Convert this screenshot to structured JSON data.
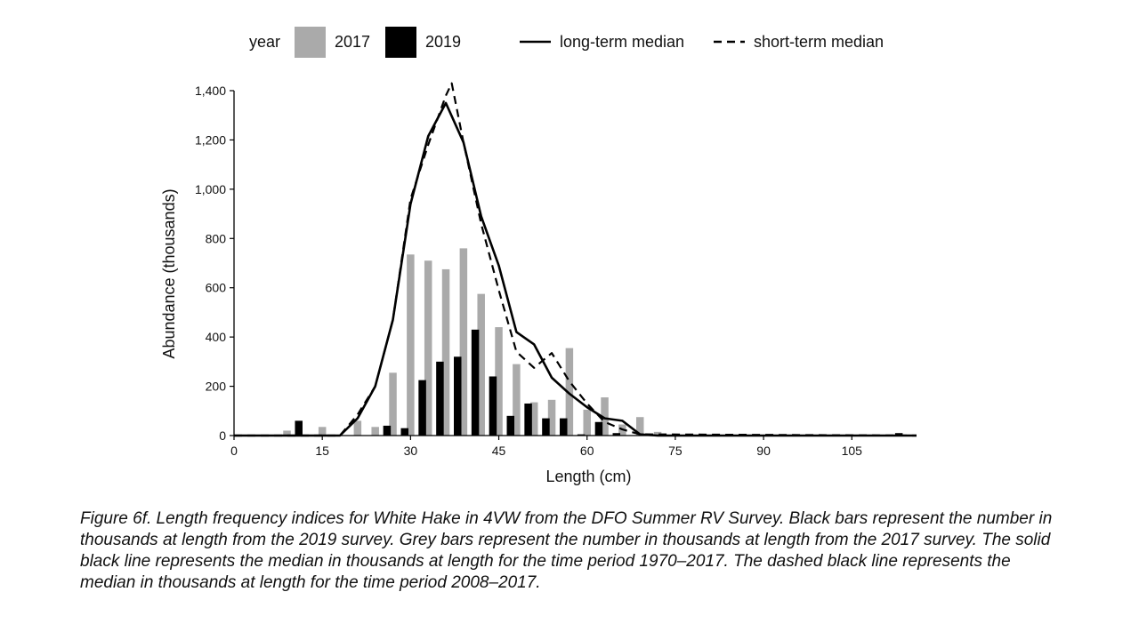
{
  "chart_data": {
    "type": "bar",
    "xlabel": "Length (cm)",
    "ylabel": "Abundance (thousands)",
    "xlim": [
      0,
      116
    ],
    "ylim": [
      0,
      1400
    ],
    "x_ticks": [
      0,
      15,
      30,
      45,
      60,
      75,
      90,
      105
    ],
    "x_tick_labels": [
      "0",
      "15",
      "30",
      "45",
      "60",
      "75",
      "90",
      "105"
    ],
    "y_ticks": [
      0,
      200,
      400,
      600,
      800,
      1000,
      1200,
      1400
    ],
    "y_tick_labels": [
      "0",
      "200",
      "400",
      "600",
      "800",
      "1,000",
      "1,200",
      "1,400"
    ],
    "legend": {
      "position": "top",
      "title": "year",
      "bar_entries": [
        {
          "name": "2017",
          "color": "#aaaaaa"
        },
        {
          "name": "2019",
          "color": "#000000"
        }
      ],
      "line_entries": [
        {
          "name": "long-term median",
          "style": "solid"
        },
        {
          "name": "short-term median",
          "style": "dashed"
        }
      ]
    },
    "bar_series": [
      {
        "name": "2017",
        "color": "#aaaaaa",
        "x": [
          9,
          15,
          21,
          24,
          27,
          30,
          33,
          36,
          39,
          42,
          45,
          48,
          51,
          54,
          57,
          60,
          63,
          66,
          69,
          72
        ],
        "values": [
          20,
          35,
          60,
          35,
          255,
          735,
          710,
          675,
          760,
          575,
          440,
          290,
          135,
          145,
          355,
          105,
          155,
          45,
          75,
          15
        ]
      },
      {
        "name": "2019",
        "color": "#000000",
        "x": [
          11,
          26,
          29,
          32,
          35,
          38,
          41,
          44,
          47,
          50,
          53,
          56,
          59,
          62,
          65,
          113
        ],
        "values": [
          60,
          40,
          30,
          225,
          300,
          320,
          430,
          240,
          80,
          130,
          70,
          70,
          5,
          55,
          10,
          10
        ]
      }
    ],
    "line_series": [
      {
        "name": "long-term median",
        "style": "solid",
        "x": [
          0,
          18,
          21,
          24,
          27,
          30,
          33,
          36,
          39,
          42,
          45,
          48,
          51,
          54,
          57,
          60,
          63,
          66,
          69,
          72,
          116
        ],
        "values": [
          0,
          0,
          70,
          200,
          470,
          940,
          1215,
          1350,
          1190,
          890,
          690,
          420,
          370,
          235,
          170,
          115,
          70,
          60,
          5,
          0,
          0
        ]
      },
      {
        "name": "short-term median",
        "style": "dashed",
        "x": [
          0,
          18,
          21,
          24,
          27,
          30,
          33,
          36,
          37,
          39,
          42,
          45,
          48,
          51,
          54,
          57,
          60,
          63,
          66,
          69,
          116
        ],
        "values": [
          0,
          0,
          85,
          200,
          470,
          960,
          1180,
          1380,
          1430,
          1190,
          860,
          590,
          340,
          275,
          335,
          220,
          130,
          55,
          25,
          5,
          0
        ]
      }
    ]
  },
  "caption": "Figure 6f. Length frequency indices for White Hake in 4VW from the DFO Summer RV Survey. Black bars represent the number in thousands at length from the 2019 survey. Grey bars represent the number in thousands at length from the 2017 survey. The solid black line represents the median in thousands at length for the time period 1970–2017. The dashed black line represents the median in thousands at length for the time period 2008–2017."
}
